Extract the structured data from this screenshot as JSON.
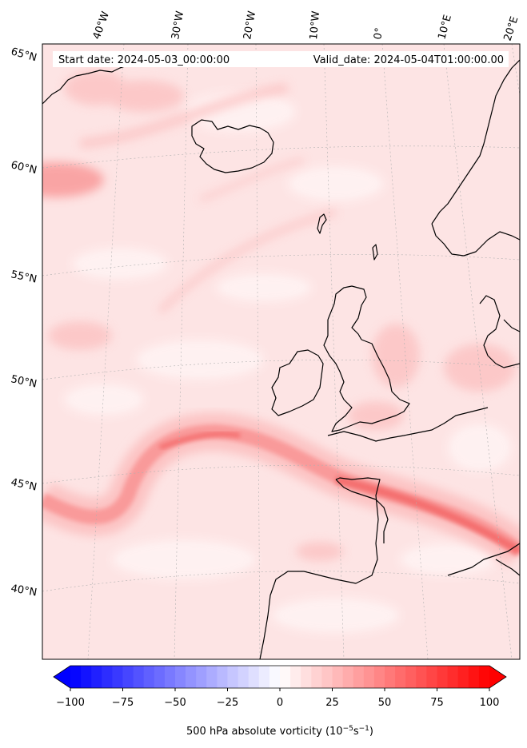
{
  "header": {
    "start_date": "Start date: 2024-05-03_00:00:00",
    "valid_date": "Valid_date: 2024-05-04T01:00:00.00"
  },
  "longitude_labels": [
    "40°W",
    "30°W",
    "20°W",
    "10°W",
    "0°",
    "10°E",
    "20°E"
  ],
  "latitude_labels": [
    "65°N",
    "60°N",
    "55°N",
    "50°N",
    "45°N",
    "40°N"
  ],
  "colorbar": {
    "ticks": [
      "−100",
      "−75",
      "−50",
      "−25",
      "0",
      "25",
      "50",
      "75",
      "100"
    ],
    "min": -100,
    "max": 100,
    "low_color": "#0000ff",
    "mid_color": "#ffffff",
    "high_color": "#ff0000",
    "extend": "both"
  },
  "xlabel": {
    "prefix": "500 hPa absolute vorticity (10",
    "exp1": "−5",
    "mid": "s",
    "exp2": "−1",
    "suffix": ")"
  },
  "colors": {
    "field_base": "#fde4e4",
    "field_light": "#fff3f3",
    "field_mid": "#fcc4c4",
    "field_strong": "#f99a9a",
    "field_peak": "#f46e6e",
    "coast": "#000000"
  }
}
